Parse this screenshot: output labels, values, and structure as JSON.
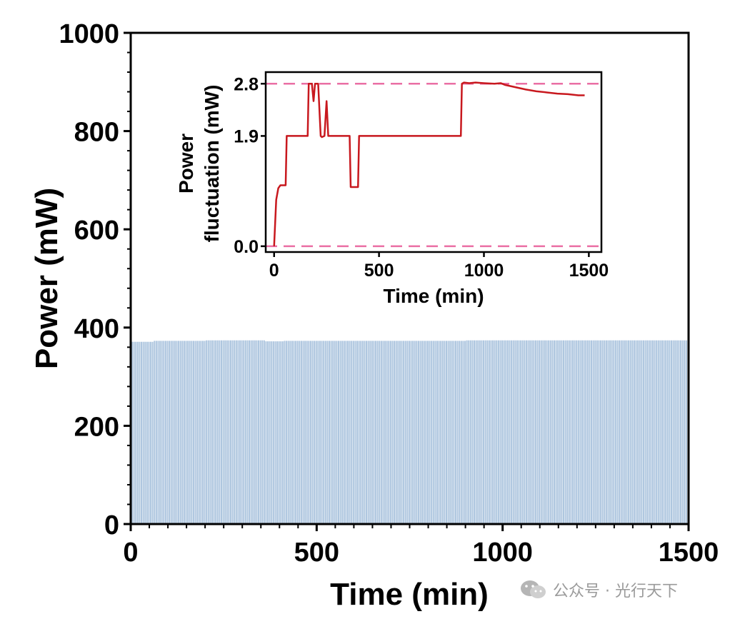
{
  "chart_data": [
    {
      "type": "bar",
      "xlabel": "Time (min)",
      "ylabel": "Power (mW)",
      "xlim": [
        0,
        1500
      ],
      "ylim": [
        0,
        1000
      ],
      "xticks": [
        0,
        500,
        1000,
        1500
      ],
      "yticks": [
        0,
        200,
        400,
        600,
        800,
        1000
      ],
      "bar_color": "#aec6df",
      "bar_interval_min": 5,
      "series": [
        {
          "x_range": [
            0,
            1500
          ],
          "values_by_segment": [
            {
              "x": [
                0,
                60
              ],
              "y": 371
            },
            {
              "x": [
                60,
                200
              ],
              "y": 373
            },
            {
              "x": [
                200,
                360
              ],
              "y": 374
            },
            {
              "x": [
                360,
                410
              ],
              "y": 372
            },
            {
              "x": [
                410,
                900
              ],
              "y": 373
            },
            {
              "x": [
                900,
                1500
              ],
              "y": 374
            }
          ]
        }
      ]
    },
    {
      "type": "line",
      "inset": true,
      "xlabel": "Time (min)",
      "ylabel_lines": [
        "Power",
        "fluctuation (mW)"
      ],
      "xlim": [
        -40,
        1560
      ],
      "ylim": [
        -0.1,
        3.0
      ],
      "xticks": [
        0,
        500,
        1000,
        1500
      ],
      "yticks": [
        0.0,
        1.9,
        2.8
      ],
      "ytick_labels": [
        "0.0",
        "1.9",
        "2.8"
      ],
      "reference_lines": [
        {
          "y": 2.8,
          "color": "#ea6fa4",
          "style": "dashed"
        },
        {
          "y": 0.0,
          "color": "#ea6fa4",
          "style": "dashed"
        }
      ],
      "series": [
        {
          "color": "#c8181e",
          "x": [
            0,
            10,
            20,
            30,
            45,
            55,
            60,
            100,
            140,
            160,
            165,
            180,
            188,
            195,
            210,
            222,
            228,
            240,
            250,
            258,
            265,
            300,
            350,
            360,
            365,
            400,
            405,
            410,
            420,
            500,
            600,
            700,
            800,
            880,
            890,
            895,
            905,
            930,
            960,
            1000,
            1050,
            1080,
            1100,
            1150,
            1200,
            1250,
            1300,
            1350,
            1400,
            1450,
            1480
          ],
          "y": [
            0.0,
            0.8,
            1.0,
            1.05,
            1.05,
            1.05,
            1.9,
            1.9,
            1.9,
            1.9,
            2.8,
            2.8,
            2.5,
            2.8,
            2.8,
            1.9,
            1.88,
            1.9,
            2.5,
            1.9,
            1.9,
            1.9,
            1.9,
            1.9,
            1.02,
            1.02,
            1.9,
            1.9,
            1.9,
            1.9,
            1.9,
            1.9,
            1.9,
            1.9,
            1.9,
            2.8,
            2.82,
            2.81,
            2.82,
            2.81,
            2.8,
            2.81,
            2.78,
            2.74,
            2.7,
            2.67,
            2.65,
            2.63,
            2.62,
            2.6,
            2.6
          ]
        }
      ]
    }
  ],
  "watermark": {
    "text": "公众号 · 光行天下",
    "icon": "wechat-icon"
  }
}
